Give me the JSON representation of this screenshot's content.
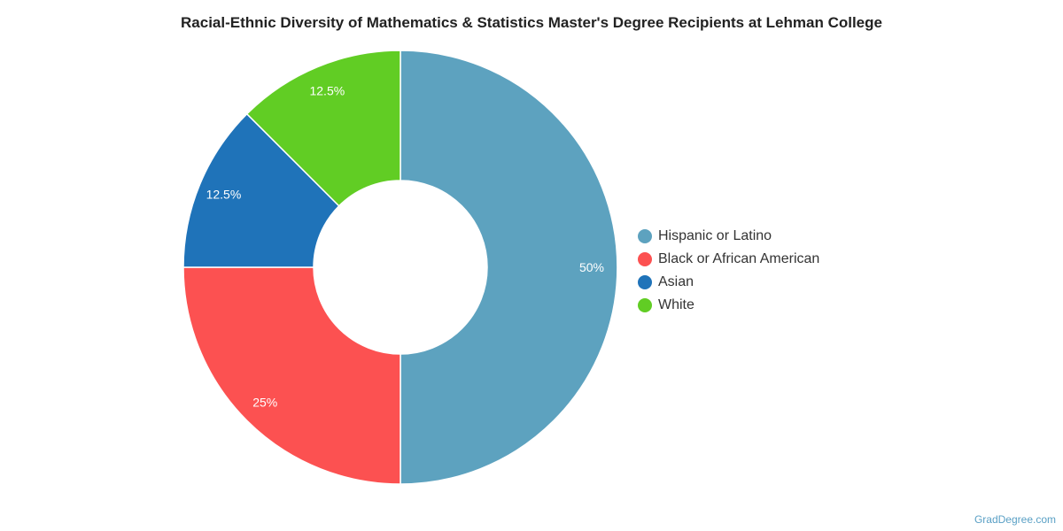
{
  "title": "Racial-Ethnic Diversity of Mathematics & Statistics Master's Degree Recipients at Lehman College",
  "credit": "GradDegree.com",
  "chart_data": {
    "type": "pie",
    "variant": "donut",
    "title": "Racial-Ethnic Diversity of Mathematics & Statistics Master's Degree Recipients at Lehman College",
    "legend_position": "right",
    "slices": [
      {
        "name": "Hispanic or Latino",
        "value": 50,
        "label": "50%",
        "color": "#5da2bf"
      },
      {
        "name": "Black or African American",
        "value": 25,
        "label": "25%",
        "color": "#fc5151"
      },
      {
        "name": "Asian",
        "value": 12.5,
        "label": "12.5%",
        "color": "#1f73b9"
      },
      {
        "name": "White",
        "value": 12.5,
        "label": "12.5%",
        "color": "#61cd24"
      }
    ]
  }
}
